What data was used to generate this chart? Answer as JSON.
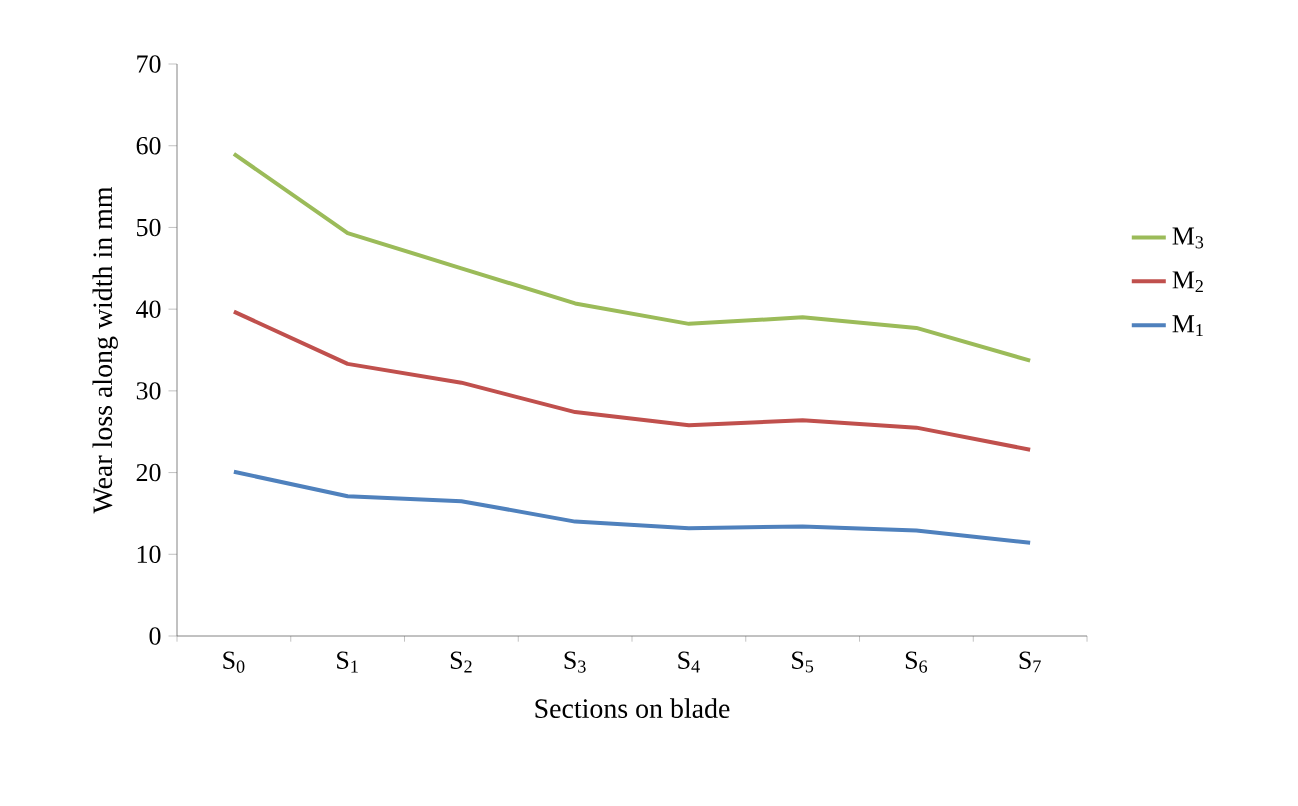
{
  "chart_data": {
    "type": "line",
    "xlabel": "Sections on blade",
    "ylabel": "Wear loss along width in mm",
    "categories": [
      "S$_{0}$",
      "S$_{1}$",
      "S$_{2}$",
      "S$_{3}$",
      "S$_{4}$",
      "S$_{5}$",
      "S$_{6}$",
      "S$_{7}$"
    ],
    "series": [
      {
        "name": "M$_{3}$",
        "color": "#9bbb59",
        "values": [
          59,
          49.3,
          45,
          40.7,
          38.2,
          39,
          37.7,
          33.7
        ]
      },
      {
        "name": "M$_{2}$",
        "color": "#c0504d",
        "values": [
          39.7,
          33.3,
          31,
          27.4,
          25.8,
          26.4,
          25.5,
          22.8
        ]
      },
      {
        "name": "M$_{1}$",
        "color": "#4f81bd",
        "values": [
          20.1,
          17.1,
          16.5,
          14,
          13.2,
          13.4,
          12.9,
          11.4
        ]
      }
    ],
    "ylim": [
      0,
      70
    ],
    "yticks": [
      0,
      10,
      20,
      30,
      40,
      50,
      60,
      70
    ],
    "grid": false,
    "legend": "right",
    "marker": "none",
    "line_style": "solid"
  }
}
